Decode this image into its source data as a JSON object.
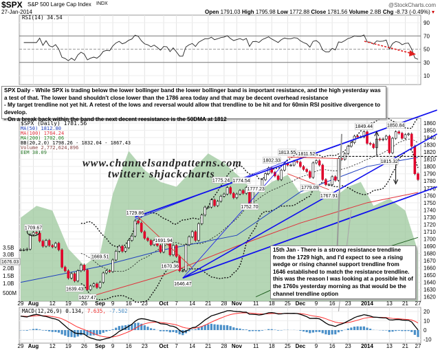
{
  "header": {
    "symbol": "$SPX",
    "name": "S&P 500 Large Cap Index",
    "exchange": "INDX",
    "date": "27-Jan-2014",
    "brand": "@StockCharts.com",
    "open_label": "Open",
    "open": "1791.03",
    "high_label": "High",
    "high": "1795.98",
    "low_label": "Low",
    "low": "1772.88",
    "close_label": "Close",
    "close": "1781.56",
    "volume_label": "Volume",
    "volume": "2.8B",
    "chg_label": "Chg",
    "chg": "-8.73 (-0.49%)",
    "chg_icon": "down-triangle-icon"
  },
  "legend": {
    "rsi": "RSI(14) 34.54",
    "price": "$SPX (Daily) 1781.56",
    "ma50": "MA(50) 1812.80",
    "ma100": "MA(100) 1764.24",
    "ma200": "MA(200) 1702.06",
    "bb": "BB(20,2.0) 1798.26 - 1832.04 - 1867.43",
    "volume": "Volume 2,772,624,896",
    "eem": "EEM 38.09",
    "macd_name": "MACD(12,26,9) 0.134,",
    "macd_signal": "7.635,",
    "macd_hist": "-7.502"
  },
  "watermark": {
    "line1": "www.channelsandpatterns.com",
    "line2": "twitter: shjackcharts"
  },
  "notes": {
    "top": [
      "SPX Daily - While SPX is trading below the lower bollinger band the lower bollinger band is important resistance, and the high yesterday was a test of that. The lower band shouldn't close lower than the 1786 area today and that may be decent overhead resistance",
      "- My target trendline not yet hit. A retest of the lows and reversal would allow that trendline to be hit and for 60min RSI positive divergence to develop.",
      "- On a break back within the band the next decent reesistance is the 50DMA at 1812"
    ],
    "bottom": [
      "15th Jan - There is a strong resistance trendline from the 1729 high, and I'd expect to see a rising wedge or rising channel support trendline from 1646 established to match the resistance trendline.",
      "this was the reason I was looking at a possible hit of the 1760s yesterday morning as that would be the channel trendline option"
    ]
  },
  "colors": {
    "up": "#ffffff",
    "down": "#e0002a",
    "ma50": "#1f3fbf",
    "ma100": "#e0303a",
    "ma200": "#1e5e1e",
    "eem": "#9cc89c",
    "trend": "#1010ee",
    "macd": "#000000",
    "signal": "#ff3030",
    "hist": "#4a8fc8"
  },
  "chart_data": {
    "type": "candlestick",
    "dates": [
      "07-29",
      "07-30",
      "07-31",
      "08-01",
      "08-02",
      "08-05",
      "08-06",
      "08-07",
      "08-08",
      "08-09",
      "08-12",
      "08-13",
      "08-14",
      "08-15",
      "08-16",
      "08-19",
      "08-20",
      "08-21",
      "08-22",
      "08-23",
      "08-26",
      "08-27",
      "08-28",
      "08-29",
      "08-30",
      "09-03",
      "09-04",
      "09-05",
      "09-06",
      "09-09",
      "09-10",
      "09-11",
      "09-12",
      "09-13",
      "09-16",
      "09-17",
      "09-18",
      "09-19",
      "09-20",
      "09-23",
      "09-24",
      "09-25",
      "09-26",
      "09-27",
      "09-30",
      "10-01",
      "10-02",
      "10-03",
      "10-04",
      "10-07",
      "10-08",
      "10-09",
      "10-10",
      "10-11",
      "10-14",
      "10-15",
      "10-16",
      "10-17",
      "10-18",
      "10-21",
      "10-22",
      "10-23",
      "10-24",
      "10-25",
      "10-28",
      "10-29",
      "10-30",
      "10-31",
      "11-01",
      "11-04",
      "11-05",
      "11-06",
      "11-07",
      "11-08",
      "11-11",
      "11-12",
      "11-13",
      "11-14",
      "11-15",
      "11-18",
      "11-19",
      "11-20",
      "11-21",
      "11-22",
      "11-25",
      "11-26",
      "11-27",
      "11-29",
      "12-02",
      "12-03",
      "12-04",
      "12-05",
      "12-06",
      "12-09",
      "12-10",
      "12-11",
      "12-12",
      "12-13",
      "12-16",
      "12-17",
      "12-18",
      "12-19",
      "12-20",
      "12-23",
      "12-24",
      "12-26",
      "12-27",
      "12-30",
      "12-31",
      "01-02",
      "01-03",
      "01-06",
      "01-07",
      "01-08",
      "01-09",
      "01-10",
      "01-13",
      "01-14",
      "01-15",
      "01-16",
      "01-17",
      "01-21",
      "01-22",
      "01-23",
      "01-24",
      "01-27"
    ],
    "close": [
      1685,
      1685,
      1686,
      1706,
      1709,
      1708,
      1697,
      1690,
      1698,
      1691,
      1689,
      1694,
      1685,
      1661,
      1656,
      1646,
      1652,
      1642,
      1656,
      1664,
      1657,
      1630,
      1635,
      1638,
      1633,
      1640,
      1653,
      1656,
      1655,
      1671,
      1683,
      1690,
      1683,
      1688,
      1698,
      1704,
      1725,
      1722,
      1710,
      1701,
      1698,
      1692,
      1698,
      1691,
      1682,
      1695,
      1694,
      1678,
      1691,
      1676,
      1656,
      1656,
      1692,
      1703,
      1710,
      1698,
      1721,
      1733,
      1744,
      1744,
      1754,
      1746,
      1752,
      1759,
      1762,
      1771,
      1763,
      1757,
      1762,
      1767,
      1763,
      1771,
      1747,
      1770,
      1771,
      1768,
      1782,
      1790,
      1798,
      1792,
      1787,
      1782,
      1795,
      1804,
      1802,
      1802,
      1807,
      1806,
      1800,
      1796,
      1793,
      1785,
      1805,
      1808,
      1802,
      1782,
      1775,
      1775,
      1786,
      1781,
      1811,
      1810,
      1818,
      1828,
      1833,
      1842,
      1841,
      1841,
      1848,
      1832,
      1831,
      1826,
      1838,
      1837,
      1838,
      1842,
      1819,
      1839,
      1848,
      1846,
      1839,
      1844,
      1845,
      1828,
      1790,
      1782
    ],
    "ma50": [
      [
        "07-29",
        1640
      ],
      [
        "09-03",
        1662
      ],
      [
        "10-01",
        1685
      ],
      [
        "11-01",
        1705
      ],
      [
        "12-02",
        1765
      ],
      [
        "01-02",
        1800
      ],
      [
        "01-27",
        1812.8
      ]
    ],
    "ma100": [
      [
        "08-26",
        1618
      ],
      [
        "10-01",
        1650
      ],
      [
        "11-01",
        1690
      ],
      [
        "12-02",
        1722
      ],
      [
        "01-02",
        1750
      ],
      [
        "01-27",
        1764.24
      ]
    ],
    "ma200": [
      [
        "11-11",
        1620
      ],
      [
        "12-02",
        1648
      ],
      [
        "01-02",
        1680
      ],
      [
        "01-27",
        1702.06
      ]
    ],
    "eem": [
      [
        "07-29",
        39.5
      ],
      [
        "08-05",
        40
      ],
      [
        "08-12",
        39.8
      ],
      [
        "08-19",
        38.2
      ],
      [
        "08-26",
        37.5
      ],
      [
        "09-03",
        38
      ],
      [
        "09-09",
        40.5
      ],
      [
        "09-16",
        42.3
      ],
      [
        "09-23",
        41.5
      ],
      [
        "09-30",
        41
      ],
      [
        "10-07",
        40.8
      ],
      [
        "10-14",
        41.5
      ],
      [
        "10-21",
        42.2
      ],
      [
        "10-28",
        41.8
      ],
      [
        "11-04",
        41.2
      ],
      [
        "11-11",
        40.5
      ],
      [
        "11-18",
        41
      ],
      [
        "11-25",
        41.3
      ],
      [
        "12-02",
        40.5
      ],
      [
        "12-09",
        40.7
      ],
      [
        "12-16",
        40.3
      ],
      [
        "12-23",
        40.8
      ],
      [
        "12-30",
        41
      ],
      [
        "01-06",
        40
      ],
      [
        "01-13",
        40.3
      ],
      [
        "01-21",
        39.8
      ],
      [
        "01-27",
        38.09
      ]
    ],
    "price_labels": [
      [
        "08-02",
        "1709.67"
      ],
      [
        "09-03",
        "1669.51"
      ],
      [
        "08-21",
        "1639.43"
      ],
      [
        "08-27",
        "1627.47"
      ],
      [
        "09-18",
        "1729.86"
      ],
      [
        "10-01",
        "1691.94"
      ],
      [
        "10-03",
        "1670.36"
      ],
      [
        "10-09",
        "1646.47"
      ],
      [
        "10-29",
        "1775.24"
      ],
      [
        "11-04",
        "1774.54"
      ],
      [
        "11-07",
        "1752.70"
      ],
      [
        "11-11",
        "1777.23"
      ],
      [
        "11-18",
        "1802.33"
      ],
      [
        "11-27",
        "1813.55"
      ],
      [
        "12-02",
        "1811.52"
      ],
      [
        "12-05",
        "1779.09"
      ],
      [
        "12-13",
        "1767.91"
      ],
      [
        "12-31",
        "1849.44"
      ],
      [
        "01-15",
        "1850.84"
      ],
      [
        "01-13",
        "1815.32"
      ]
    ],
    "x_ticks": [
      [
        "07-29",
        "29"
      ],
      [
        "08-02",
        "Aug"
      ],
      [
        "08-12",
        "12"
      ],
      [
        "08-19",
        "19"
      ],
      [
        "08-26",
        "26"
      ],
      [
        "09-03",
        "Sep"
      ],
      [
        "09-09",
        "9"
      ],
      [
        "09-16",
        "16"
      ],
      [
        "09-23",
        "23"
      ],
      [
        "10-01",
        "Oct"
      ],
      [
        "10-07",
        "7"
      ],
      [
        "10-14",
        "14"
      ],
      [
        "10-21",
        "21"
      ],
      [
        "10-28",
        "28"
      ],
      [
        "11-01",
        "Nov"
      ],
      [
        "11-11",
        "11"
      ],
      [
        "11-18",
        "18"
      ],
      [
        "11-25",
        "25"
      ],
      [
        "12-02",
        "Dec"
      ],
      [
        "12-09",
        "9"
      ],
      [
        "12-16",
        "16"
      ],
      [
        "12-23",
        "23"
      ],
      [
        "01-02",
        "2014"
      ],
      [
        "01-13",
        "13"
      ],
      [
        "01-21",
        "21"
      ],
      [
        "01-27",
        "27"
      ]
    ],
    "price_ticks": [
      "1860",
      "1850",
      "1840",
      "1830",
      "1820",
      "1810",
      "1800",
      "1790",
      "1780",
      "1770",
      "1760",
      "1750",
      "1740",
      "1730",
      "1720",
      "1710",
      "1700",
      "1690",
      "1680",
      "1670",
      "1660",
      "1650",
      "1640",
      "1630",
      "1620"
    ],
    "volume_ticks": [
      "3.5B",
      "3.0B",
      "2.0B",
      "1.5B",
      "1.0B",
      "500M"
    ],
    "volume_left_label": "1676.03",
    "rsi_ticks": [
      "90",
      "70",
      "50",
      "30",
      "10"
    ],
    "macd_ticks": [
      "20",
      "10",
      "0",
      "-10"
    ],
    "ylim": [
      1615,
      1866
    ]
  }
}
